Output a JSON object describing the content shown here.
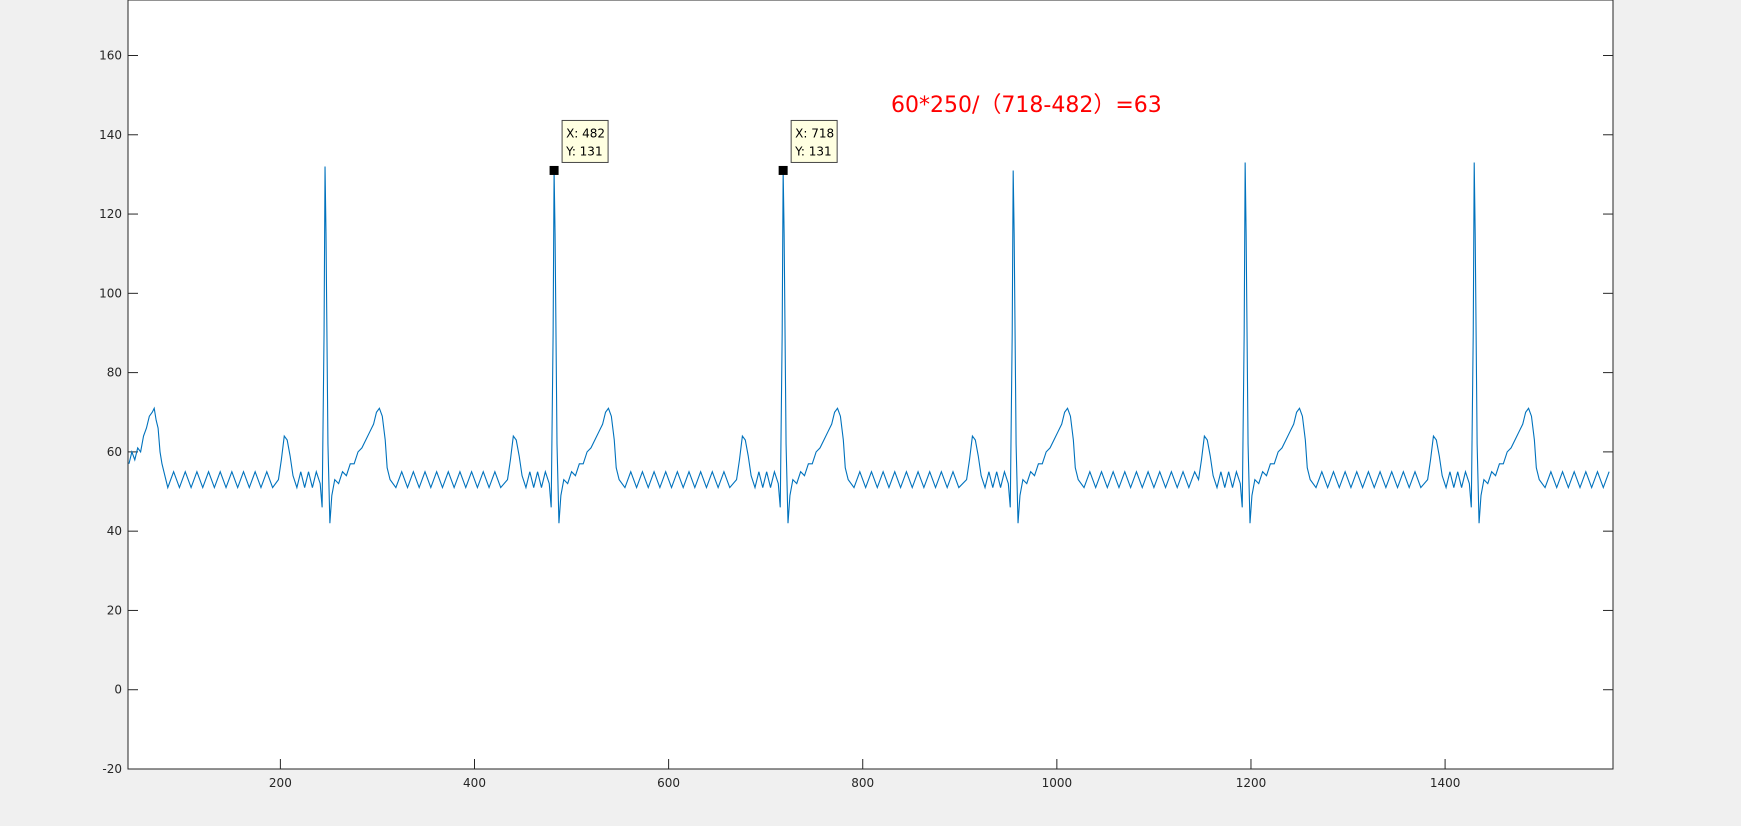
{
  "chart_data": {
    "type": "line",
    "xlim": [
      43,
      1573
    ],
    "ylim": [
      -20,
      174
    ],
    "xticks": [
      200,
      400,
      600,
      800,
      1000,
      1200,
      1400
    ],
    "yticks": [
      -20,
      0,
      20,
      40,
      60,
      80,
      100,
      120,
      140,
      160
    ],
    "annotation": "60*250/（718-482）=63",
    "annotation_color": "#ff0000",
    "datatips": [
      {
        "x": 482,
        "y": 131,
        "labels": [
          "X: 482",
          "Y: 131"
        ]
      },
      {
        "x": 718,
        "y": 131,
        "labels": [
          "X: 718",
          "Y: 131"
        ]
      }
    ],
    "series": [
      {
        "color": "#0072bd",
        "x": [
          44,
          47,
          50,
          53,
          56,
          59,
          62,
          65,
          68,
          70,
          72,
          74,
          76,
          78,
          80,
          84,
          90,
          96,
          102,
          108,
          114,
          120,
          126,
          132,
          138,
          144,
          150,
          156,
          162,
          168,
          174,
          180,
          186,
          192,
          198,
          201,
          204,
          207,
          210,
          213,
          217,
          221,
          225,
          229,
          233,
          237,
          241,
          243,
          245,
          246,
          247,
          249,
          251,
          253,
          256,
          260,
          264,
          268,
          272,
          276,
          280,
          284,
          288,
          292,
          296,
          299,
          302,
          305,
          308,
          310,
          313,
          319,
          325,
          331,
          337,
          343,
          349,
          355,
          361,
          367,
          373,
          379,
          385,
          391,
          397,
          403,
          409,
          415,
          421,
          427,
          434,
          437,
          440,
          443,
          446,
          449,
          453,
          457,
          461,
          465,
          469,
          473,
          477,
          479,
          481,
          482,
          483,
          485,
          487,
          489,
          492,
          496,
          500,
          504,
          508,
          512,
          516,
          520,
          524,
          528,
          532,
          535,
          538,
          541,
          544,
          546,
          549,
          555,
          561,
          567,
          573,
          579,
          585,
          591,
          597,
          603,
          609,
          615,
          621,
          627,
          633,
          639,
          645,
          651,
          657,
          663,
          670,
          673,
          676,
          679,
          682,
          685,
          689,
          693,
          697,
          701,
          705,
          709,
          713,
          715,
          717,
          718,
          719,
          721,
          723,
          725,
          728,
          732,
          736,
          740,
          744,
          748,
          752,
          756,
          760,
          764,
          768,
          771,
          774,
          777,
          780,
          782,
          785,
          791,
          797,
          803,
          809,
          815,
          821,
          827,
          833,
          839,
          845,
          851,
          857,
          863,
          869,
          875,
          881,
          887,
          893,
          899,
          907,
          910,
          913,
          916,
          919,
          922,
          926,
          930,
          934,
          938,
          942,
          946,
          950,
          952,
          954,
          955,
          956,
          958,
          960,
          962,
          965,
          969,
          973,
          977,
          981,
          985,
          989,
          993,
          997,
          1001,
          1005,
          1008,
          1011,
          1014,
          1017,
          1019,
          1022,
          1028,
          1034,
          1040,
          1046,
          1052,
          1058,
          1064,
          1070,
          1076,
          1082,
          1088,
          1094,
          1100,
          1106,
          1112,
          1118,
          1124,
          1130,
          1136,
          1142,
          1146,
          1149,
          1152,
          1155,
          1158,
          1161,
          1165,
          1169,
          1173,
          1177,
          1181,
          1185,
          1189,
          1191,
          1193,
          1194,
          1195,
          1197,
          1199,
          1201,
          1204,
          1208,
          1212,
          1216,
          1220,
          1224,
          1228,
          1232,
          1236,
          1240,
          1244,
          1247,
          1250,
          1253,
          1256,
          1258,
          1261,
          1267,
          1273,
          1279,
          1285,
          1291,
          1297,
          1303,
          1309,
          1315,
          1321,
          1327,
          1333,
          1339,
          1345,
          1351,
          1357,
          1363,
          1369,
          1375,
          1382,
          1385,
          1388,
          1391,
          1394,
          1397,
          1401,
          1405,
          1409,
          1413,
          1417,
          1421,
          1425,
          1427,
          1429,
          1430,
          1431,
          1433,
          1435,
          1437,
          1440,
          1444,
          1448,
          1452,
          1456,
          1460,
          1464,
          1468,
          1472,
          1476,
          1480,
          1483,
          1486,
          1489,
          1492,
          1494,
          1497,
          1503,
          1509,
          1515,
          1521,
          1527,
          1533,
          1539,
          1545,
          1551,
          1557,
          1563,
          1569
        ],
        "values": [
          57,
          60,
          58,
          61,
          60,
          64,
          66,
          69,
          70,
          71,
          68,
          66,
          60,
          57,
          55,
          51,
          55,
          51,
          55,
          51,
          55,
          51,
          55,
          51,
          55,
          51,
          55,
          51,
          55,
          51,
          55,
          51,
          55,
          51,
          53,
          58,
          64,
          63,
          59,
          54,
          51,
          55,
          51,
          55,
          51,
          55,
          52,
          46,
          90,
          132,
          115,
          62,
          42,
          49,
          53,
          52,
          55,
          54,
          57,
          57,
          60,
          61,
          63,
          65,
          67,
          70,
          71,
          69,
          63,
          56,
          53,
          51,
          55,
          51,
          55,
          51,
          55,
          51,
          55,
          51,
          55,
          51,
          55,
          51,
          55,
          51,
          55,
          51,
          55,
          51,
          53,
          58,
          64,
          63,
          59,
          54,
          51,
          55,
          51,
          55,
          51,
          55,
          52,
          46,
          90,
          131,
          115,
          62,
          42,
          49,
          53,
          52,
          55,
          54,
          57,
          57,
          60,
          61,
          63,
          65,
          67,
          70,
          71,
          69,
          63,
          56,
          53,
          51,
          55,
          51,
          55,
          51,
          55,
          51,
          55,
          51,
          55,
          51,
          55,
          51,
          55,
          51,
          55,
          51,
          55,
          51,
          53,
          58,
          64,
          63,
          59,
          54,
          51,
          55,
          51,
          55,
          51,
          55,
          52,
          46,
          90,
          131,
          115,
          62,
          42,
          49,
          53,
          52,
          55,
          54,
          57,
          57,
          60,
          61,
          63,
          65,
          67,
          70,
          71,
          69,
          63,
          56,
          53,
          51,
          55,
          51,
          55,
          51,
          55,
          51,
          55,
          51,
          55,
          51,
          55,
          51,
          55,
          51,
          55,
          51,
          55,
          51,
          53,
          58,
          64,
          63,
          59,
          54,
          51,
          55,
          51,
          55,
          51,
          55,
          52,
          46,
          90,
          131,
          115,
          62,
          42,
          49,
          53,
          52,
          55,
          54,
          57,
          57,
          60,
          61,
          63,
          65,
          67,
          70,
          71,
          69,
          63,
          56,
          53,
          51,
          55,
          51,
          55,
          51,
          55,
          51,
          55,
          51,
          55,
          51,
          55,
          51,
          55,
          51,
          55,
          51,
          55,
          51,
          55,
          53,
          58,
          64,
          63,
          59,
          54,
          51,
          55,
          51,
          55,
          51,
          55,
          52,
          46,
          90,
          133,
          115,
          62,
          42,
          49,
          53,
          52,
          55,
          54,
          57,
          57,
          60,
          61,
          63,
          65,
          67,
          70,
          71,
          69,
          63,
          56,
          53,
          51,
          55,
          51,
          55,
          51,
          55,
          51,
          55,
          51,
          55,
          51,
          55,
          51,
          55,
          51,
          55,
          51,
          55,
          51,
          53,
          58,
          64,
          63,
          59,
          54,
          51,
          55,
          51,
          55,
          51,
          55,
          52,
          46,
          90,
          133,
          115,
          62,
          42,
          49,
          53,
          52,
          55,
          54,
          57,
          57,
          60,
          61,
          63,
          65,
          67,
          70,
          71,
          69,
          63,
          56,
          53,
          51,
          55,
          51,
          55,
          51,
          55,
          51,
          55,
          51,
          55,
          51,
          55
        ]
      }
    ]
  }
}
